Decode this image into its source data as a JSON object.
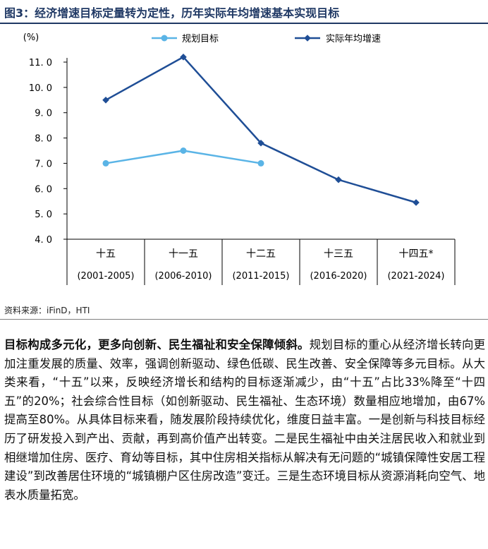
{
  "figure": {
    "title": "图3：经济增速目标定量转为定性，历年实际年均增速基本实现目标"
  },
  "chart_data": {
    "type": "line",
    "ylabel": "(%)",
    "ylim": [
      4.0,
      11.0
    ],
    "yticks": [
      "4. 0",
      "5. 0",
      "6. 0",
      "7. 0",
      "8. 0",
      "9. 0",
      "10. 0",
      "11. 0"
    ],
    "categories": [
      "十五",
      "十一五",
      "十二五",
      "十三五",
      "十四五*"
    ],
    "category_periods": [
      "(2001-2005)",
      "(2006-2010)",
      "(2011-2015)",
      "(2016-2020)",
      "(2021-2024)"
    ],
    "series": [
      {
        "name": "规划目标",
        "color": "#5ab4e6",
        "values": [
          7.0,
          7.5,
          7.0,
          null,
          null
        ]
      },
      {
        "name": "实际年均增速",
        "color": "#1f4e96",
        "values": [
          9.5,
          11.2,
          7.8,
          6.35,
          5.45
        ]
      }
    ],
    "legend_position": "top",
    "grid": false
  },
  "source": "资料来源：iFinD，HTI",
  "paragraph": {
    "lead": "目标构成多元化，更多向创新、民生福祉和安全保障倾斜。",
    "text": "规划目标的重心从经济增长转向更加注重发展的质量、效率，强调创新驱动、绿色低碳、民生改善、安全保障等多元目标。从大类来看，“十五”以来，反映经济增长和结构的目标逐渐减少，由“十五”占比33%降至“十四五”的20%；社会综合性目标（如创新驱动、民生福祉、生态环境）数量相应地增加，由67%提高至80%。从具体目标来看，随发展阶段持续优化，维度日益丰富。一是创新与科技目标经历了研发投入到产出、贡献，再到高价值产出转变。二是民生福祉中由关注居民收入和就业到相继增加住房、医疗、育幼等目标，其中住房相关指标从解决有无问题的“城镇保障性安居工程建设”到改善居住环境的“城镇棚户区住房改造”变迁。三是生态环境目标从资源消耗向空气、地表水质量拓宽。"
  }
}
